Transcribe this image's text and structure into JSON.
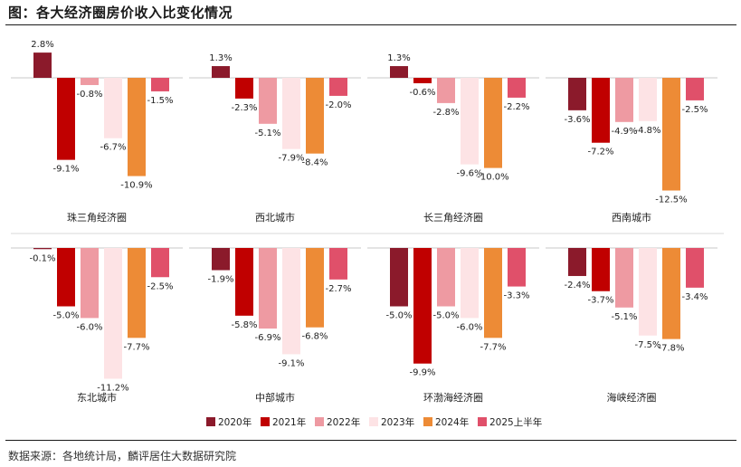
{
  "title": "图：各大经济圈房价收入比变化情况",
  "source": "数据来源：各地统计局，麟评居住大数据研究院",
  "chart_data": {
    "type": "bar",
    "series_names": [
      "2020年",
      "2021年",
      "2022年",
      "2023年",
      "2024年",
      "2025上半年"
    ],
    "series_colors": [
      "#8b1a2b",
      "#c00000",
      "#ee9aa2",
      "#fde3e5",
      "#ed8b36",
      "#e0506a"
    ],
    "legend_position": "bottom",
    "panels": [
      {
        "name": "珠三角经济圈",
        "values": [
          2.8,
          -9.1,
          -0.8,
          -6.7,
          -10.9,
          -1.5
        ],
        "labels": [
          "2.8%",
          "-9.1%",
          "-0.8%",
          "-6.7%",
          "-10.9%",
          "-1.5%"
        ]
      },
      {
        "name": "西北城市",
        "values": [
          1.3,
          -2.3,
          -5.1,
          -7.9,
          -8.4,
          -2.0
        ],
        "labels": [
          "1.3%",
          "-2.3%",
          "-5.1%",
          "-7.9%",
          "-8.4%",
          "-2.0%"
        ]
      },
      {
        "name": "长三角经济圈",
        "values": [
          1.3,
          -0.6,
          -2.8,
          -9.6,
          -10.0,
          -2.2
        ],
        "labels": [
          "1.3%",
          "-0.6%",
          "-2.8%",
          "-9.6%",
          "-10.0%",
          "-2.2%"
        ]
      },
      {
        "name": "西南城市",
        "values": [
          -3.6,
          -7.2,
          -4.9,
          -4.8,
          -12.5,
          -2.5
        ],
        "labels": [
          "-3.6%",
          "-7.2%",
          "-4.9%",
          "-4.8%",
          "-12.5%",
          "-2.5%"
        ]
      },
      {
        "name": "东北城市",
        "values": [
          -0.1,
          -5.0,
          -6.0,
          -11.2,
          -7.7,
          -2.5
        ],
        "labels": [
          "-0.1%",
          "-5.0%",
          "-6.0%",
          "-11.2%",
          "-7.7%",
          "-2.5%"
        ]
      },
      {
        "name": "中部城市",
        "values": [
          -1.9,
          -5.8,
          -6.9,
          -9.1,
          -6.8,
          -2.7
        ],
        "labels": [
          "-1.9%",
          "-5.8%",
          "-6.9%",
          "-9.1%",
          "-6.8%",
          "-2.7%"
        ]
      },
      {
        "name": "环渤海经济圈",
        "values": [
          -5.0,
          -9.9,
          -5.0,
          -6.0,
          -7.7,
          -3.3
        ],
        "labels": [
          "-5.0%",
          "-9.9%",
          "-5.0%",
          "-6.0%",
          "-7.7%",
          "-3.3%"
        ]
      },
      {
        "name": "海峡经济圈",
        "values": [
          -2.4,
          -3.7,
          -5.1,
          -7.5,
          -7.8,
          -3.4
        ],
        "labels": [
          "-2.4%",
          "-3.7%",
          "-5.1%",
          "-7.5%",
          "-7.8%",
          "-3.4%"
        ]
      }
    ]
  }
}
